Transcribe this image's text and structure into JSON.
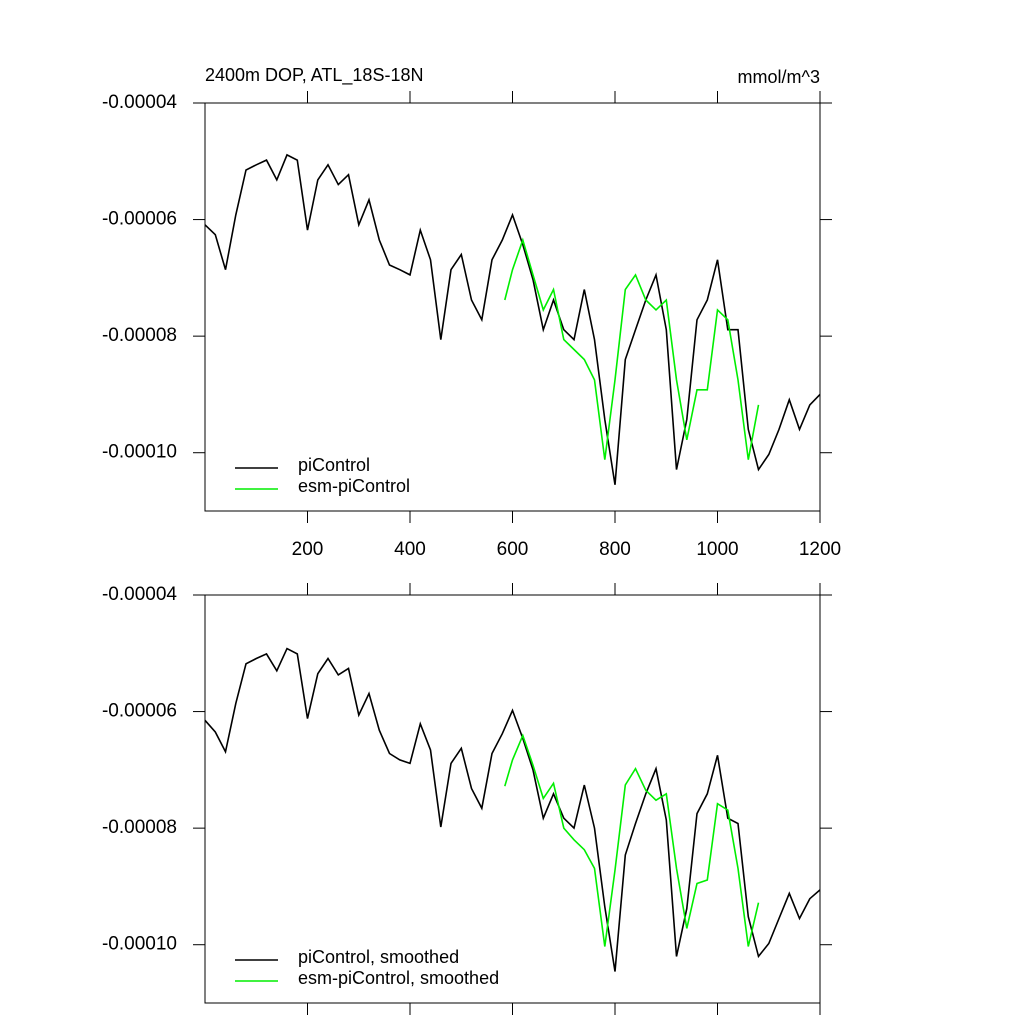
{
  "chart_data": [
    {
      "type": "line",
      "title": "2400m DOP, ATL_18S-18N",
      "subtitle": "mmol/m^3",
      "xlim": [
        0,
        1200
      ],
      "xticks": [
        200,
        400,
        600,
        800,
        1000,
        1200
      ],
      "xtick_labels": true,
      "ylim": [
        -0.00011,
        -4e-05
      ],
      "yticks": [
        -4e-05,
        -6e-05,
        -8e-05,
        {
          "value": -0.0001,
          "label": "-0.00010"
        }
      ],
      "legend": "lower left",
      "series": [
        {
          "name": "piControl",
          "color": "#000000",
          "x": [
            0,
            20,
            40,
            60,
            80,
            100,
            120,
            140,
            160,
            180,
            200,
            220,
            240,
            260,
            280,
            300,
            320,
            340,
            360,
            380,
            400,
            420,
            440,
            460,
            480,
            500,
            520,
            540,
            560,
            580,
            600,
            620,
            640,
            660,
            680,
            700,
            720,
            740,
            760,
            780,
            800,
            820,
            840,
            860,
            880,
            900,
            920,
            940,
            960,
            980,
            1000,
            1020,
            1040,
            1060,
            1080,
            1100,
            1120,
            1140,
            1160,
            1180,
            1200
          ],
          "values": [
            -6.09e-05,
            -6.26e-05,
            -6.86e-05,
            -5.92e-05,
            -5.15e-05,
            -5.06e-05,
            -4.98e-05,
            -5.32e-05,
            -4.89e-05,
            -4.98e-05,
            -6.18e-05,
            -5.32e-05,
            -5.06e-05,
            -5.4e-05,
            -5.23e-05,
            -6.09e-05,
            -5.66e-05,
            -6.35e-05,
            -6.78e-05,
            -6.86e-05,
            -6.95e-05,
            -6.18e-05,
            -6.69e-05,
            -8.06e-05,
            -6.86e-05,
            -6.6e-05,
            -7.38e-05,
            -7.72e-05,
            -6.69e-05,
            -6.35e-05,
            -5.92e-05,
            -6.43e-05,
            -7.03e-05,
            -7.89e-05,
            -7.38e-05,
            -7.89e-05,
            -8.06e-05,
            -7.2e-05,
            -8.06e-05,
            -9.43e-05,
            -0.0001055,
            -8.4e-05,
            -7.89e-05,
            -7.38e-05,
            -6.95e-05,
            -7.89e-05,
            -0.0001029,
            -9.43e-05,
            -7.72e-05,
            -7.38e-05,
            -6.69e-05,
            -7.89e-05,
            -7.89e-05,
            -9.6e-05,
            -0.0001029,
            -0.0001003,
            -9.6e-05,
            -9.09e-05,
            -9.6e-05,
            -9.18e-05,
            -9e-05
          ]
        },
        {
          "name": "esm-piControl",
          "color": "#00ee00",
          "x": [
            585,
            600,
            620,
            640,
            660,
            680,
            700,
            720,
            740,
            760,
            780,
            800,
            820,
            840,
            860,
            880,
            900,
            920,
            940,
            960,
            980,
            1000,
            1020,
            1040,
            1060,
            1080
          ],
          "values": [
            -7.38e-05,
            -6.86e-05,
            -6.35e-05,
            -6.95e-05,
            -7.55e-05,
            -7.2e-05,
            -8.06e-05,
            -8.23e-05,
            -8.4e-05,
            -8.75e-05,
            -0.0001012,
            -8.75e-05,
            -7.2e-05,
            -6.95e-05,
            -7.38e-05,
            -7.55e-05,
            -7.38e-05,
            -8.75e-05,
            -9.78e-05,
            -8.92e-05,
            -8.92e-05,
            -7.55e-05,
            -7.72e-05,
            -8.75e-05,
            -0.0001012,
            -9.18e-05
          ]
        }
      ]
    },
    {
      "type": "line",
      "xlim": [
        0,
        1200
      ],
      "xticks": [
        200,
        400,
        600,
        800,
        1000,
        1200
      ],
      "xtick_labels": false,
      "ylim": [
        -0.00011,
        -4e-05
      ],
      "yticks": [
        -4e-05,
        -6e-05,
        -8e-05,
        {
          "value": -0.0001,
          "label": "-0.00010"
        }
      ],
      "legend": "lower left",
      "series": [
        {
          "name": "piControl, smoothed",
          "color": "#000000",
          "x": [
            0,
            20,
            40,
            60,
            80,
            100,
            120,
            140,
            160,
            180,
            200,
            220,
            240,
            260,
            280,
            300,
            320,
            340,
            360,
            380,
            400,
            420,
            440,
            460,
            480,
            500,
            520,
            540,
            560,
            580,
            600,
            620,
            640,
            660,
            680,
            700,
            720,
            740,
            760,
            780,
            800,
            820,
            840,
            860,
            880,
            900,
            920,
            940,
            960,
            980,
            1000,
            1020,
            1040,
            1060,
            1080,
            1100,
            1120,
            1140,
            1160,
            1180,
            1200
          ],
          "values": [
            -6.15e-05,
            -6.35e-05,
            -6.69e-05,
            -5.86e-05,
            -5.18e-05,
            -5.09e-05,
            -5.01e-05,
            -5.3e-05,
            -4.92e-05,
            -5.01e-05,
            -6.12e-05,
            -5.35e-05,
            -5.09e-05,
            -5.37e-05,
            -5.26e-05,
            -6.06e-05,
            -5.69e-05,
            -6.32e-05,
            -6.72e-05,
            -6.83e-05,
            -6.89e-05,
            -6.21e-05,
            -6.66e-05,
            -7.98e-05,
            -6.89e-05,
            -6.63e-05,
            -7.32e-05,
            -7.66e-05,
            -6.72e-05,
            -6.38e-05,
            -5.98e-05,
            -6.46e-05,
            -7e-05,
            -7.83e-05,
            -7.41e-05,
            -7.83e-05,
            -8e-05,
            -7.26e-05,
            -8e-05,
            -9.35e-05,
            -0.0001046,
            -8.46e-05,
            -7.92e-05,
            -7.41e-05,
            -6.98e-05,
            -7.86e-05,
            -0.000102,
            -9.38e-05,
            -7.75e-05,
            -7.41e-05,
            -6.75e-05,
            -7.83e-05,
            -7.92e-05,
            -9.52e-05,
            -0.000102,
            -9.98e-05,
            -9.55e-05,
            -9.12e-05,
            -9.55e-05,
            -9.21e-05,
            -9.06e-05
          ]
        },
        {
          "name": "esm-piControl, smoothed",
          "color": "#00ee00",
          "x": [
            585,
            600,
            620,
            640,
            660,
            680,
            700,
            720,
            740,
            760,
            780,
            800,
            820,
            840,
            860,
            880,
            900,
            920,
            940,
            960,
            980,
            1000,
            1020,
            1040,
            1060,
            1080
          ],
          "values": [
            -7.28e-05,
            -6.83e-05,
            -6.41e-05,
            -6.92e-05,
            -7.49e-05,
            -7.23e-05,
            -8e-05,
            -8.2e-05,
            -8.37e-05,
            -8.69e-05,
            -0.0001003,
            -8.72e-05,
            -7.26e-05,
            -6.98e-05,
            -7.35e-05,
            -7.52e-05,
            -7.41e-05,
            -8.69e-05,
            -9.72e-05,
            -8.95e-05,
            -8.89e-05,
            -7.58e-05,
            -7.69e-05,
            -8.69e-05,
            -0.0001003,
            -9.28e-05
          ]
        }
      ]
    }
  ]
}
